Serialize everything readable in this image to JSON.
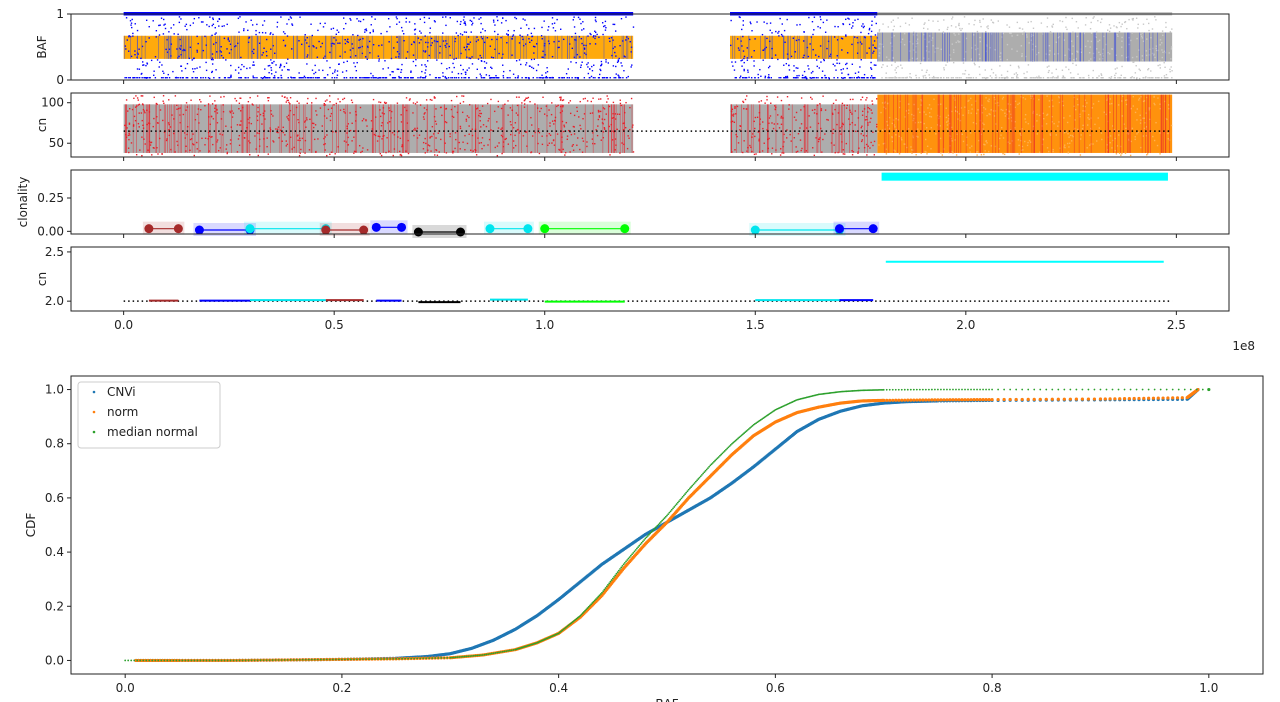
{
  "chart_data": [
    {
      "type": "scatter",
      "ylabel": "BAF",
      "ylim": [
        0,
        1
      ],
      "yticks": [
        "0",
        "1"
      ],
      "regions": [
        {
          "x": [
            0.0,
            1.21
          ],
          "band_color": "#ffa500",
          "band_y": [
            0.32,
            0.67
          ],
          "outlier_color": "#0000ff"
        },
        {
          "x": [
            1.44,
            1.79
          ],
          "band_color": "#ffa500",
          "band_y": [
            0.32,
            0.67
          ],
          "outlier_color": "#0000ff"
        },
        {
          "x": [
            1.79,
            2.49
          ],
          "band_color": "#a9a9a9",
          "band_y": [
            0.28,
            0.72
          ],
          "outlier_color": "#c8c8c8"
        }
      ]
    },
    {
      "type": "scatter",
      "ylabel": "cn",
      "ylim": [
        33,
        112
      ],
      "yticks": [
        "50",
        "100"
      ],
      "normal_line": 65,
      "regions": [
        {
          "x": [
            0.0,
            1.21
          ],
          "band_color": "#a9a9a9",
          "band_y": [
            38,
            98
          ],
          "outlier_color": "#e8202a"
        },
        {
          "x": [
            1.44,
            1.79
          ],
          "band_color": "#a9a9a9",
          "band_y": [
            38,
            98
          ],
          "outlier_color": "#e8202a"
        },
        {
          "x": [
            1.79,
            2.49
          ],
          "band_color": "#ff8c00",
          "band_y": [
            38,
            110
          ],
          "outlier_color": "#ffb050"
        }
      ]
    },
    {
      "type": "line",
      "ylabel": "clonality",
      "ylim": [
        -0.02,
        0.46
      ],
      "yticks": [
        "0.00",
        "0.25"
      ],
      "segments": [
        {
          "x": [
            0.06,
            0.13
          ],
          "y": 0.02,
          "color": "#a52a2a"
        },
        {
          "x": [
            0.18,
            0.3
          ],
          "y": 0.01,
          "color": "#0000ff"
        },
        {
          "x": [
            0.3,
            0.48
          ],
          "y": 0.02,
          "color": "#00e5ee"
        },
        {
          "x": [
            0.48,
            0.57
          ],
          "y": 0.01,
          "color": "#a52a2a"
        },
        {
          "x": [
            0.6,
            0.66
          ],
          "y": 0.03,
          "color": "#0000ff"
        },
        {
          "x": [
            0.7,
            0.8
          ],
          "y": -0.005,
          "color": "#000000"
        },
        {
          "x": [
            0.87,
            0.96
          ],
          "y": 0.02,
          "color": "#00e5ee"
        },
        {
          "x": [
            1.0,
            1.19
          ],
          "y": 0.02,
          "color": "#00ff00"
        },
        {
          "x": [
            1.5,
            1.7
          ],
          "y": 0.01,
          "color": "#00e5ee"
        },
        {
          "x": [
            1.7,
            1.78
          ],
          "y": 0.02,
          "color": "#0000ff"
        }
      ],
      "bars": [
        {
          "x": [
            1.8,
            2.48
          ],
          "y": [
            0.38,
            0.44
          ],
          "color": "#00ffff"
        }
      ]
    },
    {
      "type": "line",
      "ylabel": "cn",
      "ylim": [
        1.9,
        2.55
      ],
      "yticks": [
        "2.0",
        "2.5"
      ],
      "xlabel": "",
      "xticks": [
        "0.0",
        "0.5",
        "1.0",
        "1.5",
        "2.0",
        "2.5"
      ],
      "xoffset": "1e8",
      "xlim": [
        -0.125,
        2.625
      ],
      "normal_line": 2.0,
      "segments": [
        {
          "x": [
            0.06,
            0.13
          ],
          "y": 2.005,
          "color": "#a52a2a"
        },
        {
          "x": [
            0.18,
            0.3
          ],
          "y": 2.005,
          "color": "#0000ff"
        },
        {
          "x": [
            0.3,
            0.48
          ],
          "y": 2.01,
          "color": "#00e5ee"
        },
        {
          "x": [
            0.48,
            0.57
          ],
          "y": 2.01,
          "color": "#a52a2a"
        },
        {
          "x": [
            0.6,
            0.66
          ],
          "y": 2.005,
          "color": "#0000ff"
        },
        {
          "x": [
            0.7,
            0.8
          ],
          "y": 1.99,
          "color": "#000000"
        },
        {
          "x": [
            0.87,
            0.96
          ],
          "y": 2.015,
          "color": "#00e5ee"
        },
        {
          "x": [
            1.0,
            1.19
          ],
          "y": 1.995,
          "color": "#00ff00"
        },
        {
          "x": [
            1.5,
            1.7
          ],
          "y": 2.01,
          "color": "#00e5ee"
        },
        {
          "x": [
            1.7,
            1.78
          ],
          "y": 2.01,
          "color": "#0000ff"
        },
        {
          "x": [
            1.81,
            2.47
          ],
          "y": 2.4,
          "color": "#00ffff"
        }
      ]
    },
    {
      "type": "scatter",
      "ylabel": "CDF",
      "xlabel": "BAF",
      "xlim": [
        -0.05,
        1.05
      ],
      "ylim": [
        -0.05,
        1.05
      ],
      "xticks": [
        "0.0",
        "0.2",
        "0.4",
        "0.6",
        "0.8",
        "1.0"
      ],
      "yticks": [
        "0.0",
        "0.2",
        "0.4",
        "0.6",
        "0.8",
        "1.0"
      ],
      "legend_position": "upper-left",
      "series": [
        {
          "name": "CNVi",
          "color": "#1f77b4",
          "x": [
            0.01,
            0.05,
            0.1,
            0.15,
            0.2,
            0.25,
            0.28,
            0.3,
            0.32,
            0.34,
            0.36,
            0.38,
            0.4,
            0.42,
            0.44,
            0.46,
            0.48,
            0.5,
            0.52,
            0.54,
            0.56,
            0.58,
            0.6,
            0.62,
            0.64,
            0.66,
            0.68,
            0.7,
            0.72,
            0.75,
            0.8,
            0.9,
            0.98,
            0.99
          ],
          "y": [
            0.0,
            0.0,
            0.0,
            0.002,
            0.004,
            0.008,
            0.015,
            0.025,
            0.045,
            0.075,
            0.115,
            0.165,
            0.225,
            0.29,
            0.355,
            0.41,
            0.465,
            0.51,
            0.555,
            0.6,
            0.655,
            0.715,
            0.78,
            0.845,
            0.89,
            0.92,
            0.94,
            0.95,
            0.955,
            0.958,
            0.96,
            0.962,
            0.964,
            1.0
          ]
        },
        {
          "name": "norm",
          "color": "#ff7f0e",
          "x": [
            0.01,
            0.05,
            0.1,
            0.15,
            0.2,
            0.25,
            0.3,
            0.33,
            0.36,
            0.38,
            0.4,
            0.42,
            0.44,
            0.46,
            0.48,
            0.5,
            0.52,
            0.54,
            0.56,
            0.58,
            0.6,
            0.62,
            0.64,
            0.66,
            0.68,
            0.7,
            0.75,
            0.8,
            0.9,
            0.98,
            0.99
          ],
          "y": [
            0.0,
            0.0,
            0.0,
            0.002,
            0.004,
            0.006,
            0.01,
            0.02,
            0.04,
            0.065,
            0.1,
            0.16,
            0.24,
            0.34,
            0.43,
            0.51,
            0.6,
            0.68,
            0.76,
            0.83,
            0.88,
            0.915,
            0.935,
            0.95,
            0.958,
            0.96,
            0.962,
            0.963,
            0.965,
            0.97,
            1.0
          ]
        },
        {
          "name": "median normal",
          "color": "#2ca02c",
          "x": [
            0.0,
            0.05,
            0.1,
            0.15,
            0.2,
            0.25,
            0.3,
            0.33,
            0.36,
            0.38,
            0.4,
            0.42,
            0.44,
            0.46,
            0.48,
            0.5,
            0.52,
            0.54,
            0.56,
            0.58,
            0.6,
            0.62,
            0.64,
            0.66,
            0.68,
            0.7,
            0.75,
            0.8,
            0.9,
            1.0
          ],
          "y": [
            0.0,
            0.0,
            0.0,
            0.002,
            0.004,
            0.006,
            0.01,
            0.02,
            0.04,
            0.065,
            0.1,
            0.165,
            0.25,
            0.355,
            0.45,
            0.535,
            0.63,
            0.72,
            0.8,
            0.87,
            0.925,
            0.962,
            0.982,
            0.992,
            0.997,
            0.999,
            1.0,
            1.0,
            1.0,
            1.0
          ]
        }
      ]
    }
  ]
}
